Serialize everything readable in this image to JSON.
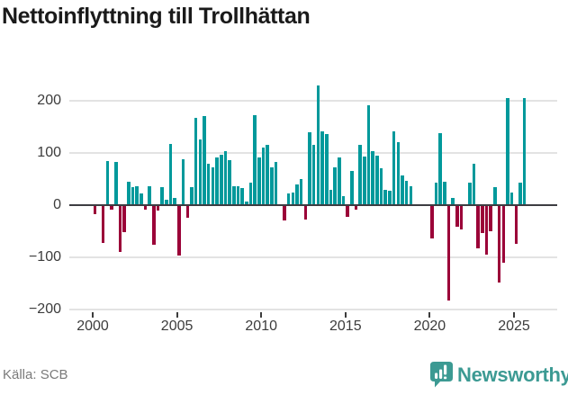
{
  "title": "Nettoinflyttning till Trollhättan",
  "source": "Källa: SCB",
  "brand": {
    "name": "Newsworthy",
    "color": "#3c9a93"
  },
  "chart_data": {
    "type": "bar",
    "title": "Nettoinflyttning till Trollhättan",
    "frequency": "quarterly",
    "x_start": "2000 Q1",
    "x_end": "2025 Q3",
    "values": [
      -18,
      0,
      -73,
      84,
      -8,
      82,
      -90,
      -51,
      44,
      34,
      37,
      23,
      -8,
      37,
      -76,
      -10,
      34,
      10,
      117,
      14,
      -96,
      88,
      -24,
      35,
      168,
      126,
      171,
      80,
      72,
      91,
      97,
      103,
      87,
      37,
      36,
      32,
      7,
      43,
      172,
      91,
      110,
      115,
      73,
      82,
      0,
      -29,
      22,
      24,
      40,
      50,
      -28,
      140,
      115,
      229,
      141,
      136,
      30,
      72,
      92,
      18,
      -22,
      66,
      -9,
      116,
      93,
      191,
      103,
      95,
      70,
      29,
      28,
      141,
      120,
      57,
      47,
      37,
      0,
      0,
      0,
      0,
      -63,
      43,
      138,
      45,
      -183,
      13,
      -42,
      -47,
      0,
      43,
      80,
      -82,
      -54,
      -95,
      -50,
      34,
      -148,
      -110,
      206,
      25,
      -74,
      43,
      206
    ],
    "x_tick_labels": [
      "2000",
      "2005",
      "2010",
      "2015",
      "2020",
      "2025"
    ],
    "x_tick_years": [
      2000,
      2005,
      2010,
      2015,
      2020,
      2025
    ],
    "y_tick_labels": [
      "200",
      "100",
      "0",
      "−100",
      "−200"
    ],
    "y_ticks": [
      200,
      100,
      0,
      -100,
      -200
    ],
    "ylim": [
      -210,
      240
    ],
    "grid": true,
    "legend": false,
    "bar_color_positive": "#00999b",
    "bar_color_negative": "#9b0238",
    "zero_line_color": "#3d3d42"
  }
}
